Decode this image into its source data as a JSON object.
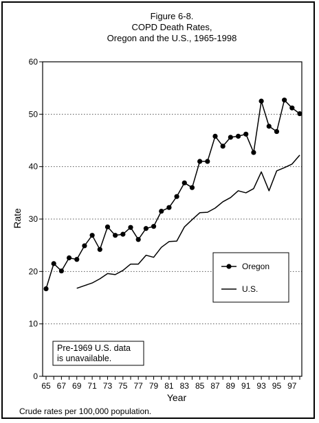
{
  "chart_data": {
    "type": "line",
    "title_lines": [
      "Figure 6-8.",
      "COPD Death Rates,",
      "Oregon and the U.S., 1965-1998"
    ],
    "xlabel": "Year",
    "ylabel": "Rate",
    "ylim": [
      0,
      60
    ],
    "xlim": [
      1965,
      1998
    ],
    "yticks": [
      0,
      10,
      20,
      30,
      40,
      50,
      60
    ],
    "xticks": [
      1965,
      1966,
      1967,
      1968,
      1969,
      1970,
      1971,
      1972,
      1973,
      1974,
      1975,
      1976,
      1977,
      1978,
      1979,
      1980,
      1981,
      1982,
      1983,
      1984,
      1985,
      1986,
      1987,
      1988,
      1989,
      1990,
      1991,
      1992,
      1993,
      1994,
      1995,
      1996,
      1997,
      1998
    ],
    "xtick_labels": [
      {
        "year": 1965,
        "label": "65"
      },
      {
        "year": 1967,
        "label": "67"
      },
      {
        "year": 1969,
        "label": "69"
      },
      {
        "year": 1971,
        "label": "71"
      },
      {
        "year": 1973,
        "label": "73"
      },
      {
        "year": 1975,
        "label": "75"
      },
      {
        "year": 1977,
        "label": "77"
      },
      {
        "year": 1979,
        "label": "79"
      },
      {
        "year": 1981,
        "label": "81"
      },
      {
        "year": 1983,
        "label": "83"
      },
      {
        "year": 1985,
        "label": "85"
      },
      {
        "year": 1987,
        "label": "87"
      },
      {
        "year": 1989,
        "label": "89"
      },
      {
        "year": 1991,
        "label": "91"
      },
      {
        "year": 1993,
        "label": "93"
      },
      {
        "year": 1995,
        "label": "95"
      },
      {
        "year": 1997,
        "label": "97"
      }
    ],
    "grid": "horizontal dotted",
    "legend_position": "right",
    "series": [
      {
        "name": "Oregon",
        "marker": "circle",
        "x": [
          1965,
          1966,
          1967,
          1968,
          1969,
          1970,
          1971,
          1972,
          1973,
          1974,
          1975,
          1976,
          1977,
          1978,
          1979,
          1980,
          1981,
          1982,
          1983,
          1984,
          1985,
          1986,
          1987,
          1988,
          1989,
          1990,
          1991,
          1992,
          1993,
          1994,
          1995,
          1996,
          1997,
          1998
        ],
        "y": [
          16.7,
          21.5,
          20.1,
          22.6,
          22.3,
          24.9,
          26.9,
          24.2,
          28.5,
          26.9,
          27.1,
          28.4,
          26.1,
          28.2,
          28.6,
          31.5,
          32.2,
          34.3,
          36.9,
          36.0,
          41.0,
          41.0,
          45.8,
          43.9,
          45.6,
          45.8,
          46.2,
          42.7,
          52.5,
          47.7,
          46.7,
          52.7,
          51.2,
          50.1
        ]
      },
      {
        "name": "U.S.",
        "marker": "none",
        "x": [
          1969,
          1970,
          1971,
          1972,
          1973,
          1974,
          1975,
          1976,
          1977,
          1978,
          1979,
          1980,
          1981,
          1982,
          1983,
          1984,
          1985,
          1986,
          1987,
          1988,
          1989,
          1990,
          1991,
          1992,
          1993,
          1994,
          1995,
          1996,
          1997,
          1998
        ],
        "y": [
          16.8,
          17.3,
          17.8,
          18.6,
          19.6,
          19.4,
          20.2,
          21.4,
          21.4,
          23.1,
          22.7,
          24.6,
          25.7,
          25.8,
          28.5,
          29.9,
          31.2,
          31.3,
          32.1,
          33.3,
          34.1,
          35.4,
          35.0,
          35.8,
          39.0,
          35.4,
          39.2,
          39.8,
          40.5,
          42.2
        ]
      }
    ]
  },
  "annotation": {
    "line1": "Pre-1969 U.S. data",
    "line2": "is unavailable."
  },
  "footnote": "Crude rates per 100,000 population."
}
